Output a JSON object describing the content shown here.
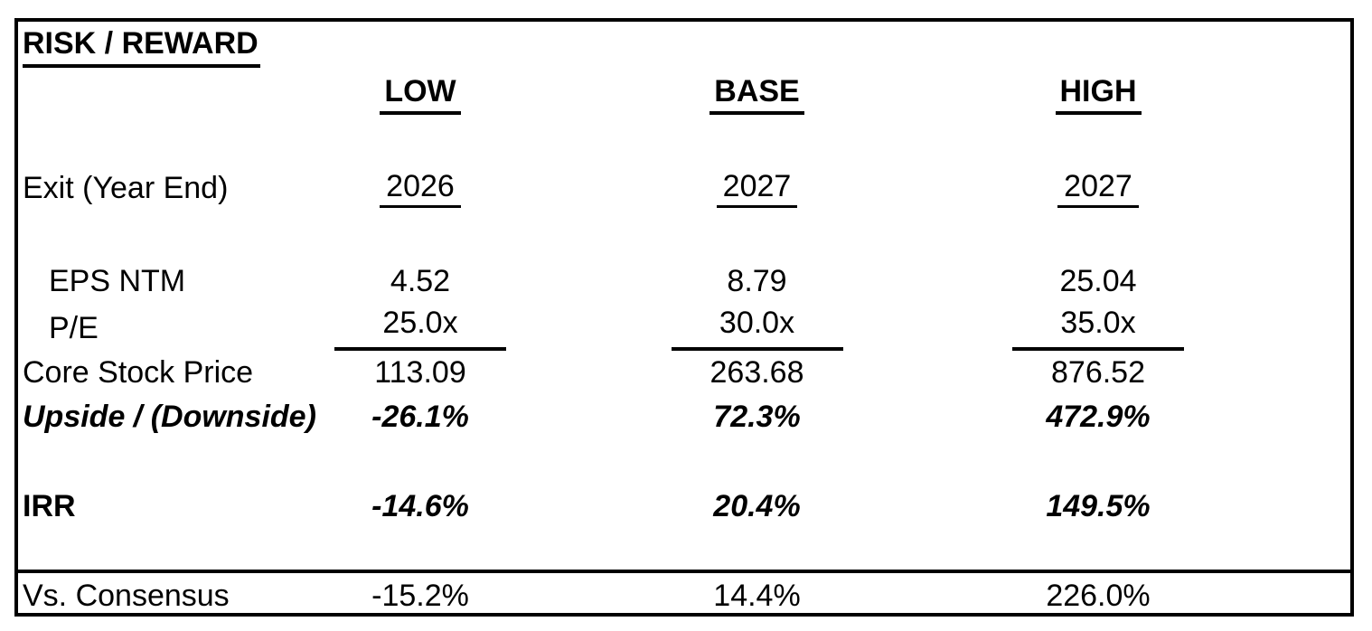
{
  "title": "RISK / REWARD",
  "columns": [
    "LOW",
    "BASE",
    "HIGH"
  ],
  "rows": {
    "exit": {
      "label": "Exit (Year End)",
      "values": [
        "2026",
        "2027",
        "2027"
      ]
    },
    "eps": {
      "label": "EPS NTM",
      "values": [
        "4.52",
        "8.79",
        "25.04"
      ]
    },
    "pe": {
      "label": "P/E",
      "values": [
        "25.0x",
        "30.0x",
        "35.0x"
      ]
    },
    "core": {
      "label": "Core Stock Price",
      "values": [
        "113.09",
        "263.68",
        "876.52"
      ]
    },
    "upside": {
      "label": "Upside / (Downside)",
      "values": [
        "-26.1%",
        "72.3%",
        "472.9%"
      ]
    },
    "irr": {
      "label": "IRR",
      "values": [
        "-14.6%",
        "20.4%",
        "149.5%"
      ]
    },
    "consensus": {
      "label": "Vs. Consensus",
      "values": [
        "-15.2%",
        "14.4%",
        "226.0%"
      ]
    }
  },
  "colors": {
    "text": "#000000",
    "border": "#000000",
    "background": "#ffffff"
  }
}
